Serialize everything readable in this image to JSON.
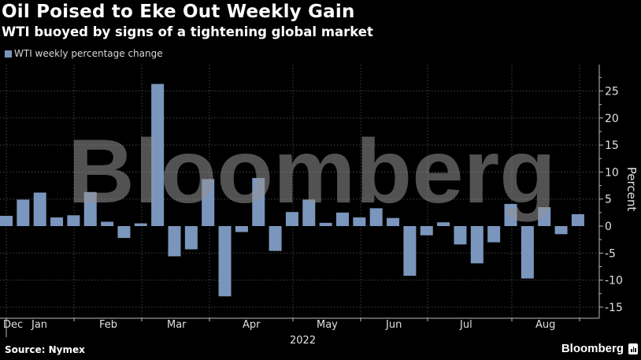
{
  "header": {
    "title": "Oil Poised to Eke Out Weekly Gain",
    "subtitle": "WTI buoyed by signs of a tightening global market"
  },
  "legend": {
    "label": "WTI weekly percentage change",
    "color": "#7b96bd"
  },
  "footer": {
    "source": "Source: Nymex",
    "brand": "Bloomberg"
  },
  "watermark": "Bloomberg",
  "chart_data": {
    "type": "bar",
    "title": "Oil Poised to Eke Out Weekly Gain",
    "subtitle": "WTI buoyed by signs of a tightening global market",
    "xlabel": "2022",
    "ylabel": "Percent",
    "ylim": [
      -17,
      29
    ],
    "yticks": [
      25,
      20,
      15,
      10,
      5,
      0,
      -5,
      -10,
      -15
    ],
    "xtick_labels": [
      "Dec",
      "Jan",
      "Feb",
      "Mar",
      "Apr",
      "May",
      "Jun",
      "Jul",
      "Aug"
    ],
    "grid": true,
    "legend_position": "top-left",
    "series": [
      {
        "name": "WTI weekly percentage change",
        "color": "#7b96bd",
        "values": [
          1.9,
          4.9,
          6.2,
          1.6,
          2.0,
          6.3,
          0.8,
          -2.2,
          0.5,
          26.3,
          -5.6,
          -4.3,
          8.7,
          -13.0,
          -1.1,
          8.9,
          -4.6,
          2.6,
          4.9,
          0.6,
          2.5,
          1.6,
          3.3,
          1.5,
          -9.2,
          -1.7,
          0.7,
          -3.4,
          -6.9,
          -3.0,
          4.1,
          -9.7,
          3.5,
          -1.5,
          2.2
        ]
      }
    ]
  }
}
